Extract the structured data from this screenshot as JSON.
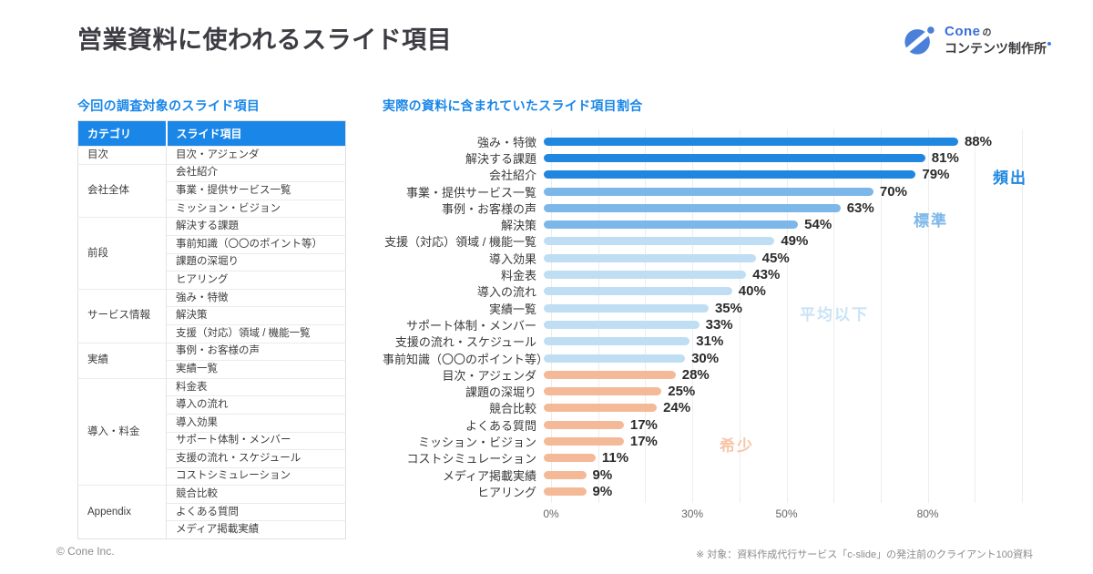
{
  "page": {
    "title": "営業資料に使われるスライド項目",
    "footer_left": "© Cone Inc.",
    "footnote": "※ 対象：資料作成代行サービス「c-slide」の発注前のクライアント100資料"
  },
  "logo": {
    "brand": "Cone",
    "brand_suffix": "の",
    "subtitle": "コンテンツ制作所"
  },
  "colors": {
    "accent_blue": "#1a86e8",
    "logo_blue": "#4a80da",
    "grid_gray": "#ededed"
  },
  "table": {
    "section_title": "今回の調査対象のスライド項目",
    "headers": [
      "カテゴリ",
      "スライド項目"
    ],
    "groups": [
      {
        "category": "目次",
        "items": [
          "目次・アジェンダ"
        ]
      },
      {
        "category": "会社全体",
        "items": [
          "会社紹介",
          "事業・提供サービス一覧",
          "ミッション・ビジョン"
        ]
      },
      {
        "category": "前段",
        "items": [
          "解決する課題",
          "事前知識（〇〇のポイント等）",
          "課題の深堀り",
          "ヒアリング"
        ]
      },
      {
        "category": "サービス情報",
        "items": [
          "強み・特徴",
          "解決策",
          "支援（対応）領域 / 機能一覧"
        ]
      },
      {
        "category": "実績",
        "items": [
          "事例・お客様の声",
          "実績一覧"
        ]
      },
      {
        "category": "導入・料金",
        "items": [
          "料金表",
          "導入の流れ",
          "導入効果",
          "サポート体制・メンバー",
          "支援の流れ・スケジュール",
          "コストシミュレーション"
        ]
      },
      {
        "category": "Appendix",
        "items": [
          "競合比較",
          "よくある質問",
          "メディア掲載実績"
        ]
      }
    ]
  },
  "chart_data": {
    "type": "bar",
    "orientation": "horizontal",
    "title": "実際の資料に含まれていたスライド項目割合",
    "categories": [
      "強み・特徴",
      "解決する課題",
      "会社紹介",
      "事業・提供サービス一覧",
      "事例・お客様の声",
      "解決策",
      "支援（対応）領域 / 機能一覧",
      "導入効果",
      "料金表",
      "導入の流れ",
      "実績一覧",
      "サポート体制・メンバー",
      "支援の流れ・スケジュール",
      "事前知識（〇〇のポイント等）",
      "目次・アジェンダ",
      "課題の深堀り",
      "競合比較",
      "よくある質問",
      "ミッション・ビジョン",
      "コストシミュレーション",
      "メディア掲載実績",
      "ヒアリング"
    ],
    "values": [
      88,
      81,
      79,
      70,
      63,
      54,
      49,
      45,
      43,
      40,
      35,
      33,
      31,
      30,
      28,
      25,
      24,
      17,
      17,
      11,
      9,
      9
    ],
    "tiers": [
      "dark",
      "dark",
      "dark",
      "mid",
      "mid",
      "mid",
      "light",
      "light",
      "light",
      "light",
      "light",
      "light",
      "light",
      "light",
      "rare",
      "rare",
      "rare",
      "rare",
      "rare",
      "rare",
      "rare",
      "rare"
    ],
    "tier_colors": {
      "dark": "#1f87e0",
      "mid": "#7cb7e9",
      "light": "#bfdef4",
      "rare": "#f4ba98"
    },
    "annotations": [
      {
        "label": "頻出",
        "tier": "dark",
        "color": "#1f87e0"
      },
      {
        "label": "標準",
        "tier": "mid",
        "color": "#7cb7e9"
      },
      {
        "label": "平均以下",
        "tier": "light",
        "color": "#c9e3f6"
      },
      {
        "label": "希少",
        "tier": "rare",
        "color": "#f6c6a7"
      }
    ],
    "x_ticks": [
      {
        "label": "0%",
        "value": 0
      },
      {
        "label": "30%",
        "value": 30
      },
      {
        "label": "50%",
        "value": 50
      },
      {
        "label": "80%",
        "value": 80
      }
    ],
    "xlim": [
      0,
      105
    ],
    "grid": true,
    "grid_step": 10,
    "legend": "none"
  }
}
